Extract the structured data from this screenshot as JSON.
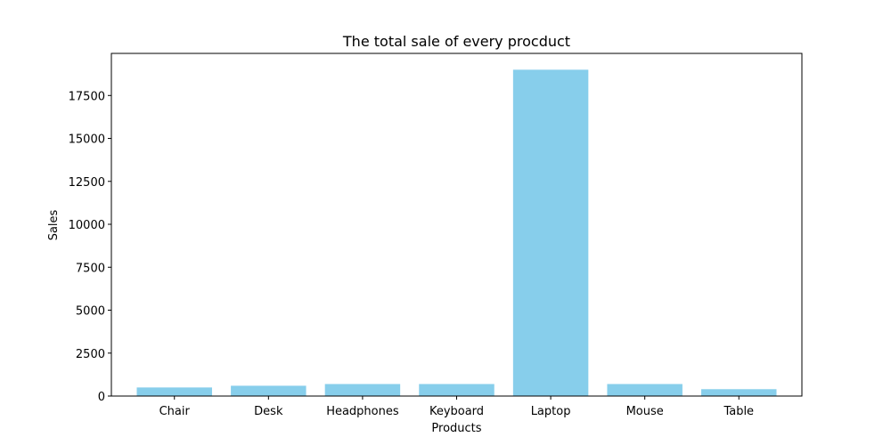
{
  "chart_data": {
    "type": "bar",
    "title": "The total sale of every procduct",
    "xlabel": "Products",
    "ylabel": "Sales",
    "categories": [
      "Chair",
      "Desk",
      "Headphones",
      "Keyboard",
      "Laptop",
      "Mouse",
      "Table"
    ],
    "values": [
      500,
      600,
      700,
      700,
      19000,
      700,
      400
    ],
    "ylim": [
      0,
      19950
    ],
    "yticks": [
      0,
      2500,
      5000,
      7500,
      10000,
      12500,
      15000,
      17500
    ],
    "ytick_labels": [
      "0",
      "2500",
      "5000",
      "7500",
      "10000",
      "12500",
      "15000",
      "17500"
    ],
    "bar_color": "#87ceeb",
    "grid": false,
    "legend": "none"
  }
}
